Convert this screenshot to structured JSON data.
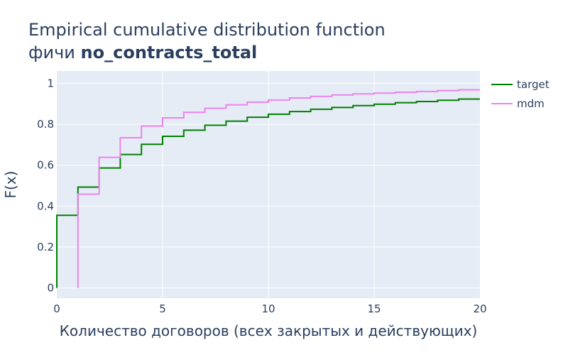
{
  "chart_data": {
    "type": "line",
    "title_line1": "Empirical cumulative distribution function",
    "title_line2_prefix": "фичи ",
    "title_line2_bold": "no_contracts_total",
    "xlabel": "Количество договоров (всех закрытых и действующих)",
    "ylabel": "F(x)",
    "xlim": [
      0,
      20
    ],
    "ylim": [
      -0.05,
      1.06
    ],
    "x_ticks": [
      0,
      5,
      10,
      15,
      20
    ],
    "x_tick_labels": [
      "0",
      "5",
      "10",
      "15",
      "20"
    ],
    "y_ticks": [
      0,
      0.2,
      0.4,
      0.6,
      0.8,
      1
    ],
    "y_tick_labels": [
      "0",
      "0.2",
      "0.4",
      "0.6",
      "0.8",
      "1"
    ],
    "grid": true,
    "legend_position": "top-right",
    "series": [
      {
        "name": "target",
        "color": "#008000",
        "step_x": [
          0,
          1,
          2,
          3,
          4,
          5,
          6,
          7,
          8,
          9,
          10,
          11,
          12,
          13,
          14,
          15,
          16,
          17,
          18,
          19
        ],
        "step_y": [
          0.355,
          0.493,
          0.586,
          0.652,
          0.702,
          0.741,
          0.771,
          0.795,
          0.815,
          0.834,
          0.849,
          0.862,
          0.873,
          0.882,
          0.891,
          0.898,
          0.905,
          0.911,
          0.917,
          0.923
        ],
        "start_y": 0
      },
      {
        "name": "mdm",
        "color": "#ee82ee",
        "step_x": [
          1,
          2,
          3,
          4,
          5,
          6,
          7,
          8,
          9,
          10,
          11,
          12,
          13,
          14,
          15,
          16,
          17,
          18,
          19
        ],
        "step_y": [
          0.458,
          0.638,
          0.734,
          0.791,
          0.831,
          0.858,
          0.878,
          0.895,
          0.908,
          0.918,
          0.928,
          0.936,
          0.943,
          0.948,
          0.952,
          0.956,
          0.96,
          0.964,
          0.968
        ],
        "start_y": 0
      }
    ]
  }
}
